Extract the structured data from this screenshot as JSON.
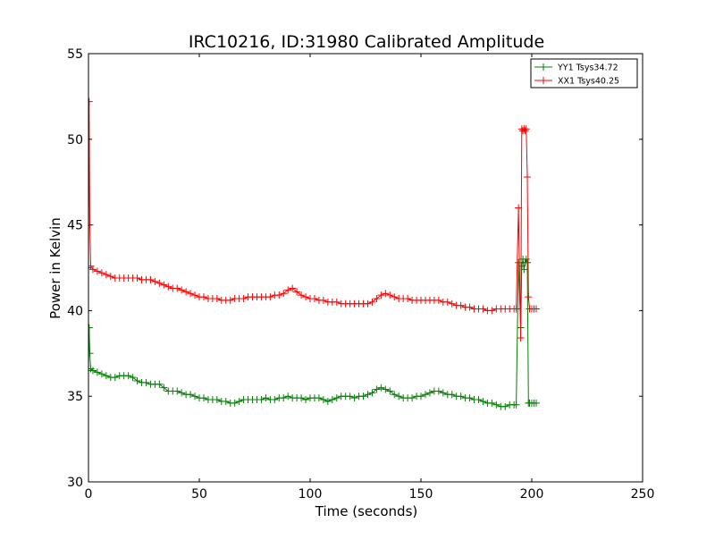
{
  "chart_data": {
    "type": "line",
    "title": "IRC10216, ID:31980 Calibrated Amplitude",
    "xlabel": "Time (seconds)",
    "ylabel": "Power in Kelvin",
    "xlim": [
      0,
      250
    ],
    "ylim": [
      30,
      55
    ],
    "xticks": [
      0,
      50,
      100,
      150,
      200,
      250
    ],
    "yticks": [
      30,
      35,
      40,
      45,
      50,
      55
    ],
    "grid": false,
    "legend_position": "top-right",
    "marker": "+",
    "series": [
      {
        "name": "YY1 Tsys34.72",
        "color": "#008000",
        "x": [
          0,
          0.3,
          0.6,
          1,
          2,
          4,
          6,
          8,
          10,
          12,
          14,
          16,
          18,
          20,
          22,
          24,
          26,
          28,
          30,
          32,
          34,
          36,
          38,
          40,
          42,
          44,
          46,
          48,
          50,
          52,
          54,
          56,
          58,
          60,
          62,
          64,
          66,
          68,
          70,
          72,
          74,
          76,
          78,
          80,
          82,
          84,
          86,
          88,
          90,
          92,
          94,
          96,
          98,
          100,
          102,
          104,
          106,
          108,
          110,
          112,
          114,
          116,
          118,
          120,
          122,
          124,
          126,
          128,
          130,
          132,
          134,
          136,
          138,
          140,
          142,
          144,
          146,
          148,
          150,
          152,
          154,
          156,
          158,
          160,
          162,
          164,
          166,
          168,
          170,
          172,
          174,
          176,
          178,
          180,
          182,
          184,
          186,
          188,
          190,
          192,
          193,
          194,
          195,
          195.5,
          196,
          196.5,
          197,
          197.5,
          198,
          198.5,
          199,
          200,
          201,
          202
        ],
        "y": [
          36.5,
          39.0,
          37.5,
          36.6,
          36.5,
          36.4,
          36.3,
          36.2,
          36.1,
          36.1,
          36.2,
          36.2,
          36.2,
          36.1,
          35.9,
          35.8,
          35.8,
          35.7,
          35.7,
          35.7,
          35.5,
          35.3,
          35.3,
          35.3,
          35.2,
          35.1,
          35.1,
          35.0,
          34.9,
          34.9,
          34.8,
          34.8,
          34.8,
          34.7,
          34.7,
          34.6,
          34.6,
          34.7,
          34.8,
          34.8,
          34.8,
          34.8,
          34.8,
          34.9,
          34.8,
          34.8,
          34.9,
          34.9,
          35.0,
          34.9,
          34.9,
          34.9,
          34.8,
          34.9,
          34.9,
          34.9,
          34.8,
          34.7,
          34.8,
          34.9,
          35.0,
          35.0,
          35.0,
          34.9,
          35.0,
          35.0,
          35.1,
          35.2,
          35.4,
          35.5,
          35.4,
          35.3,
          35.1,
          35.0,
          34.9,
          34.9,
          34.9,
          35.0,
          35.0,
          35.1,
          35.2,
          35.3,
          35.3,
          35.2,
          35.1,
          35.1,
          35.0,
          35.0,
          34.9,
          34.9,
          34.8,
          34.8,
          34.7,
          34.6,
          34.6,
          34.5,
          34.4,
          34.4,
          34.5,
          34.5,
          34.5,
          42.8,
          39.0,
          42.6,
          43.0,
          42.4,
          42.8,
          43.0,
          42.8,
          34.6,
          34.6,
          34.6,
          34.6,
          34.6
        ]
      },
      {
        "name": "XX1 Tsys40.25",
        "color": "#ff0000",
        "x": [
          0,
          0.3,
          0.6,
          1,
          2,
          4,
          6,
          8,
          10,
          12,
          14,
          16,
          18,
          20,
          22,
          24,
          26,
          28,
          30,
          32,
          34,
          36,
          38,
          40,
          42,
          44,
          46,
          48,
          50,
          52,
          54,
          56,
          58,
          60,
          62,
          64,
          66,
          68,
          70,
          72,
          74,
          76,
          78,
          80,
          82,
          84,
          86,
          88,
          90,
          92,
          94,
          96,
          98,
          100,
          102,
          104,
          106,
          108,
          110,
          112,
          114,
          116,
          118,
          120,
          122,
          124,
          126,
          128,
          130,
          132,
          134,
          136,
          138,
          140,
          142,
          144,
          146,
          148,
          150,
          152,
          154,
          156,
          158,
          160,
          162,
          164,
          166,
          168,
          170,
          172,
          174,
          176,
          178,
          180,
          182,
          184,
          186,
          188,
          190,
          192,
          193,
          194,
          195,
          195.5,
          196,
          196.5,
          197,
          197.5,
          198,
          198.5,
          199,
          200,
          201,
          202
        ],
        "y": [
          42.5,
          52.2,
          45.0,
          42.6,
          42.4,
          42.3,
          42.2,
          42.1,
          42.0,
          41.9,
          41.9,
          41.9,
          41.9,
          41.9,
          41.9,
          41.8,
          41.8,
          41.8,
          41.7,
          41.6,
          41.5,
          41.4,
          41.3,
          41.3,
          41.2,
          41.1,
          41.0,
          40.9,
          40.8,
          40.8,
          40.7,
          40.7,
          40.7,
          40.6,
          40.6,
          40.6,
          40.7,
          40.7,
          40.7,
          40.8,
          40.8,
          40.8,
          40.8,
          40.8,
          40.8,
          40.9,
          40.9,
          41.0,
          41.2,
          41.3,
          41.1,
          40.9,
          40.8,
          40.7,
          40.7,
          40.6,
          40.6,
          40.5,
          40.5,
          40.5,
          40.4,
          40.4,
          40.4,
          40.4,
          40.4,
          40.4,
          40.4,
          40.5,
          40.7,
          40.9,
          41.0,
          40.9,
          40.8,
          40.7,
          40.7,
          40.7,
          40.6,
          40.6,
          40.6,
          40.6,
          40.6,
          40.6,
          40.6,
          40.5,
          40.5,
          40.4,
          40.3,
          40.3,
          40.2,
          40.2,
          40.1,
          40.1,
          40.1,
          40.0,
          40.0,
          40.1,
          40.1,
          40.1,
          40.1,
          40.1,
          40.1,
          46.0,
          38.4,
          50.6,
          50.5,
          50.6,
          50.5,
          50.6,
          47.8,
          40.8,
          40.1,
          40.1,
          40.1,
          40.1
        ]
      }
    ]
  }
}
